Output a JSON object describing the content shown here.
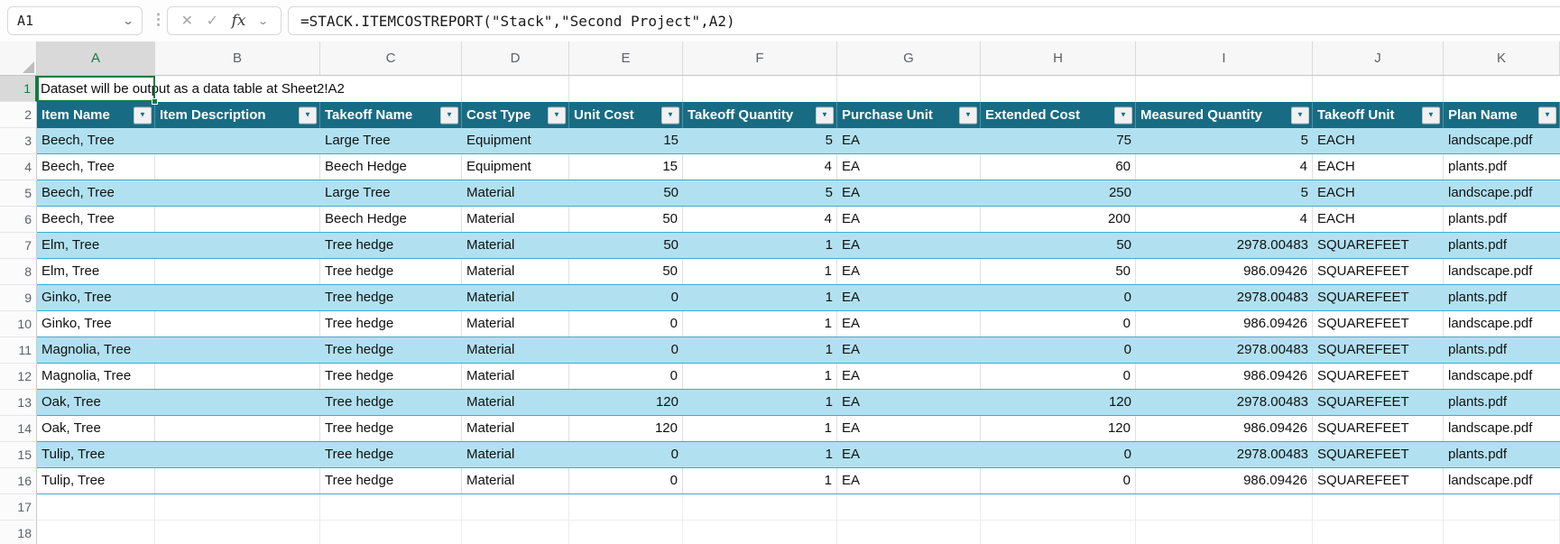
{
  "name_box": {
    "value": "A1"
  },
  "formula_bar": {
    "formula": "=STACK.ITEMCOSTREPORT(\"Stack\",\"Second Project\",A2)"
  },
  "icons": {
    "name_box_chevron": "⌄",
    "grip": "⋮",
    "cancel": "✕",
    "enter": "✓",
    "fx": "fx",
    "fx_chevron": "⌄",
    "filter_chevron": "▼"
  },
  "sheet": {
    "column_letters": [
      "A",
      "B",
      "C",
      "D",
      "E",
      "F",
      "G",
      "H",
      "I",
      "J",
      "K"
    ],
    "row_numbers": [
      "1",
      "2",
      "3",
      "4",
      "5",
      "6",
      "7",
      "8",
      "9",
      "10",
      "11",
      "12",
      "13",
      "14",
      "15",
      "16",
      "17",
      "18"
    ],
    "selected_cell": "A1",
    "selected_column": "A",
    "selected_row": "1",
    "a1_text": "Dataset will be output as a data table at Sheet2!A2"
  },
  "table": {
    "headers": [
      "Item Name",
      "Item Description",
      "Takeoff Name",
      "Cost Type",
      "Unit Cost",
      "Takeoff Quantity",
      "Purchase Unit",
      "Extended Cost",
      "Measured Quantity",
      "Takeoff Unit",
      "Plan Name"
    ],
    "rows": [
      [
        "Beech, Tree",
        "",
        "Large Tree",
        "Equipment",
        "15",
        "5",
        "EA",
        "75",
        "5",
        "EACH",
        "landscape.pdf"
      ],
      [
        "Beech, Tree",
        "",
        "Beech Hedge",
        "Equipment",
        "15",
        "4",
        "EA",
        "60",
        "4",
        "EACH",
        "plants.pdf"
      ],
      [
        "Beech, Tree",
        "",
        "Large Tree",
        "Material",
        "50",
        "5",
        "EA",
        "250",
        "5",
        "EACH",
        "landscape.pdf"
      ],
      [
        "Beech, Tree",
        "",
        "Beech Hedge",
        "Material",
        "50",
        "4",
        "EA",
        "200",
        "4",
        "EACH",
        "plants.pdf"
      ],
      [
        "Elm, Tree",
        "",
        "Tree hedge",
        "Material",
        "50",
        "1",
        "EA",
        "50",
        "2978.00483",
        "SQUAREFEET",
        "plants.pdf"
      ],
      [
        "Elm, Tree",
        "",
        "Tree hedge",
        "Material",
        "50",
        "1",
        "EA",
        "50",
        "986.09426",
        "SQUAREFEET",
        "landscape.pdf"
      ],
      [
        "Ginko, Tree",
        "",
        "Tree hedge",
        "Material",
        "0",
        "1",
        "EA",
        "0",
        "2978.00483",
        "SQUAREFEET",
        "plants.pdf"
      ],
      [
        "Ginko, Tree",
        "",
        "Tree hedge",
        "Material",
        "0",
        "1",
        "EA",
        "0",
        "986.09426",
        "SQUAREFEET",
        "landscape.pdf"
      ],
      [
        "Magnolia, Tree",
        "",
        "Tree hedge",
        "Material",
        "0",
        "1",
        "EA",
        "0",
        "2978.00483",
        "SQUAREFEET",
        "plants.pdf"
      ],
      [
        "Magnolia, Tree",
        "",
        "Tree hedge",
        "Material",
        "0",
        "1",
        "EA",
        "0",
        "986.09426",
        "SQUAREFEET",
        "landscape.pdf"
      ],
      [
        "Oak, Tree",
        "",
        "Tree hedge",
        "Material",
        "120",
        "1",
        "EA",
        "120",
        "2978.00483",
        "SQUAREFEET",
        "plants.pdf"
      ],
      [
        "Oak, Tree",
        "",
        "Tree hedge",
        "Material",
        "120",
        "1",
        "EA",
        "120",
        "986.09426",
        "SQUAREFEET",
        "landscape.pdf"
      ],
      [
        "Tulip, Tree",
        "",
        "Tree hedge",
        "Material",
        "0",
        "1",
        "EA",
        "0",
        "2978.00483",
        "SQUAREFEET",
        "plants.pdf"
      ],
      [
        "Tulip, Tree",
        "",
        "Tree hedge",
        "Material",
        "0",
        "1",
        "EA",
        "0",
        "986.09426",
        "SQUAREFEET",
        "landscape.pdf"
      ]
    ]
  },
  "colors": {
    "table_header_teal": "#176C84",
    "stripe_blue": "#B1E1F0",
    "table_row_border": "#3BACD1",
    "selection_green": "#107C41"
  }
}
